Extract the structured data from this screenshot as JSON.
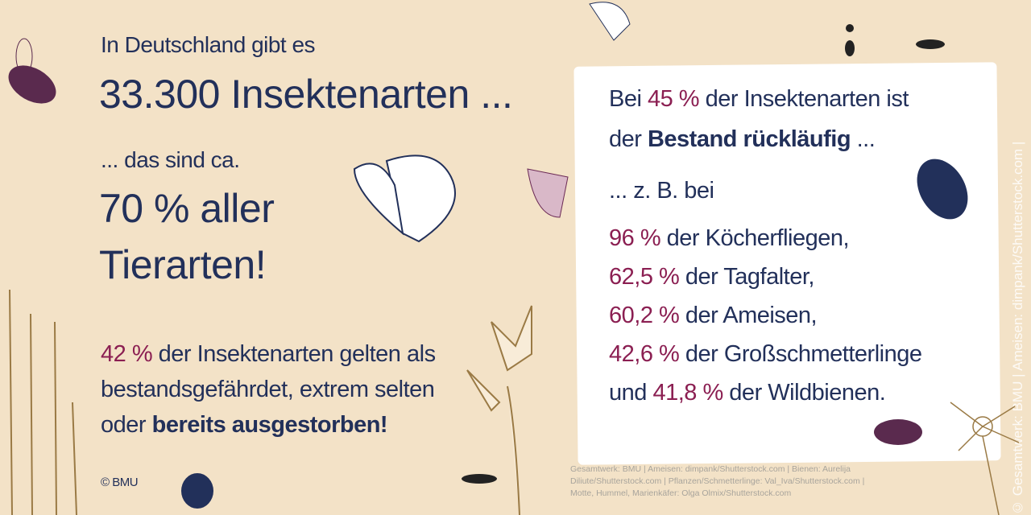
{
  "left": {
    "line1": "In Deutschland gibt es",
    "line2": "33.300 Insektenarten ...",
    "line3": "... das sind ca.",
    "line4": "70 % aller",
    "line5": "Tierarten!",
    "p_pct": "42 %",
    "p_rest1": " der Insektenarten gelten als",
    "p_line2": "bestandsgefährdet, extrem selten",
    "p_line3a": "oder ",
    "p_line3b": "bereits ausgestorben!",
    "copyright": "© BMU"
  },
  "card": {
    "l1a": "Bei ",
    "l1pct": "45 %",
    "l1b": " der Insektenarten ist",
    "l2a": "der ",
    "l2b": "Bestand rückläufig",
    "l2c": " ...",
    "l3": "... z. B. bei",
    "items": [
      {
        "pre": "",
        "pct": "96 %",
        "text": " der Köcherfliegen,"
      },
      {
        "pre": "",
        "pct": "62,5 %",
        "text": " der Tagfalter,"
      },
      {
        "pre": "",
        "pct": "60,2 %",
        "text": " der Ameisen,"
      },
      {
        "pre": "",
        "pct": "42,6 %",
        "text": " der Großschmetterlinge"
      },
      {
        "pre": "und ",
        "pct": "41,8 %",
        "text": " der Wildbienen."
      }
    ]
  },
  "credits": {
    "line1": "Gesamtwerk: BMU | Ameisen: dimpank/Shutterstock.com | Bienen: Aurelija",
    "line2": "Diliute/Shutterstock.com | Pflanzen/Schmetterlinge: Val_Iva/Shutterstock.com |",
    "line3": "Motte, Hummel, Marienkäfer: Olga Olmix/Shutterstock.com",
    "vertical": "© Gesamtwerk: BMU | Ameisen: dimpank/Shutterstock.com |"
  },
  "colors": {
    "background": "#f3e2c7",
    "navy": "#22305a",
    "accent": "#8b1f52",
    "card": "#ffffff"
  }
}
